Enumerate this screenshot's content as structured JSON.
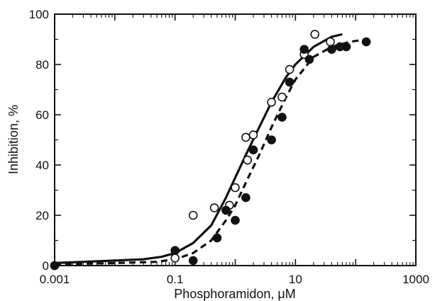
{
  "chart_data": {
    "type": "scatter",
    "title": "",
    "xlabel": "Phosphoramidon, μM",
    "ylabel": "Inhibition, %",
    "x_scale": "log",
    "xlim": [
      0.001,
      1000
    ],
    "ylim": [
      0,
      100
    ],
    "x_ticks": [
      {
        "value": 0.001,
        "label": "0.001"
      },
      {
        "value": 0.1,
        "label": "0.1"
      },
      {
        "value": 10,
        "label": "10"
      },
      {
        "value": 1000,
        "label": "1000"
      }
    ],
    "y_ticks": [
      {
        "value": 0,
        "label": "0"
      },
      {
        "value": 20,
        "label": "20"
      },
      {
        "value": 40,
        "label": "40"
      },
      {
        "value": 60,
        "label": "60"
      },
      {
        "value": 80,
        "label": "80"
      },
      {
        "value": 100,
        "label": "100"
      }
    ],
    "grid": false,
    "legend": "none",
    "series": [
      {
        "marker": "open-circle",
        "line_style": "solid",
        "points": [
          {
            "x": 0.001,
            "y": 0
          },
          {
            "x": 0.1,
            "y": 3
          },
          {
            "x": 0.2,
            "y": 20
          },
          {
            "x": 0.45,
            "y": 23
          },
          {
            "x": 0.8,
            "y": 24
          },
          {
            "x": 1.0,
            "y": 31
          },
          {
            "x": 1.5,
            "y": 51
          },
          {
            "x": 1.6,
            "y": 42
          },
          {
            "x": 2.0,
            "y": 52
          },
          {
            "x": 4.0,
            "y": 65
          },
          {
            "x": 6.0,
            "y": 67
          },
          {
            "x": 8.0,
            "y": 78
          },
          {
            "x": 14.0,
            "y": 84
          },
          {
            "x": 21.0,
            "y": 92
          },
          {
            "x": 38.0,
            "y": 89
          }
        ],
        "curve": [
          {
            "x": 0.001,
            "y": 1
          },
          {
            "x": 0.003,
            "y": 1.5
          },
          {
            "x": 0.01,
            "y": 2
          },
          {
            "x": 0.03,
            "y": 2.5
          },
          {
            "x": 0.06,
            "y": 3.5
          },
          {
            "x": 0.1,
            "y": 5
          },
          {
            "x": 0.2,
            "y": 9
          },
          {
            "x": 0.4,
            "y": 16
          },
          {
            "x": 0.7,
            "y": 27
          },
          {
            "x": 1.0,
            "y": 35
          },
          {
            "x": 1.5,
            "y": 44
          },
          {
            "x": 2.5,
            "y": 55
          },
          {
            "x": 4.0,
            "y": 65
          },
          {
            "x": 7.0,
            "y": 75
          },
          {
            "x": 10.0,
            "y": 80
          },
          {
            "x": 20.0,
            "y": 87
          },
          {
            "x": 40.0,
            "y": 91
          },
          {
            "x": 60.0,
            "y": 92
          }
        ]
      },
      {
        "marker": "filled-circle",
        "line_style": "dashed",
        "points": [
          {
            "x": 0.001,
            "y": 0
          },
          {
            "x": 0.1,
            "y": 6
          },
          {
            "x": 0.2,
            "y": 2
          },
          {
            "x": 0.5,
            "y": 11
          },
          {
            "x": 0.7,
            "y": 22
          },
          {
            "x": 1.0,
            "y": 18
          },
          {
            "x": 1.5,
            "y": 27
          },
          {
            "x": 2.0,
            "y": 46
          },
          {
            "x": 4.0,
            "y": 50
          },
          {
            "x": 6.0,
            "y": 59
          },
          {
            "x": 8.0,
            "y": 73
          },
          {
            "x": 14.0,
            "y": 86
          },
          {
            "x": 17.0,
            "y": 82
          },
          {
            "x": 40.0,
            "y": 86
          },
          {
            "x": 55.0,
            "y": 87
          },
          {
            "x": 70.0,
            "y": 87
          },
          {
            "x": 150.0,
            "y": 89
          }
        ],
        "curve": [
          {
            "x": 0.001,
            "y": 0.5
          },
          {
            "x": 0.01,
            "y": 1
          },
          {
            "x": 0.05,
            "y": 1.5
          },
          {
            "x": 0.1,
            "y": 2.5
          },
          {
            "x": 0.2,
            "y": 5
          },
          {
            "x": 0.4,
            "y": 10
          },
          {
            "x": 0.7,
            "y": 18
          },
          {
            "x": 1.0,
            "y": 24
          },
          {
            "x": 1.5,
            "y": 33
          },
          {
            "x": 2.5,
            "y": 44
          },
          {
            "x": 4.0,
            "y": 55
          },
          {
            "x": 7.0,
            "y": 67
          },
          {
            "x": 10.0,
            "y": 74
          },
          {
            "x": 20.0,
            "y": 83
          },
          {
            "x": 40.0,
            "y": 87
          },
          {
            "x": 80.0,
            "y": 89
          },
          {
            "x": 150.0,
            "y": 90
          }
        ]
      }
    ]
  }
}
